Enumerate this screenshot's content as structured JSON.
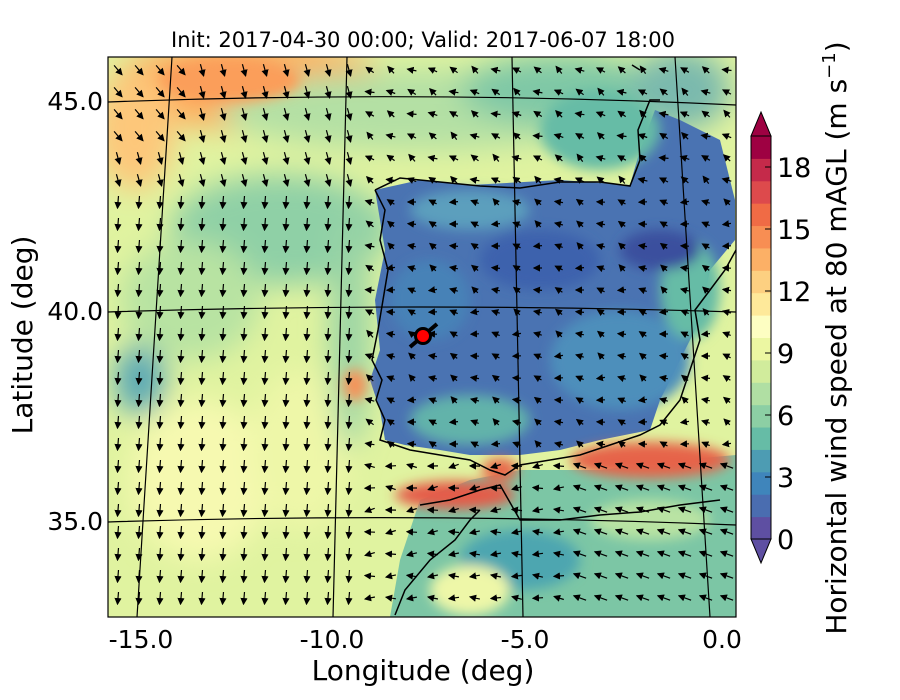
{
  "figure": {
    "title": "Init: 2017-04-30 00:00; Valid: 2017-06-07 18:00",
    "xlabel": "Longitude (deg)",
    "ylabel": "Latitude (deg)",
    "x_ticks": [
      "-15.0",
      "-10.0",
      "-5.0",
      "0.0"
    ],
    "y_ticks": [
      "45.0",
      "40.0",
      "35.0"
    ],
    "colorbar": {
      "label_main": "Horizontal wind speed at 80 mAGL (m s",
      "label_exp": "−1",
      "label_close": ")",
      "ticks": [
        "0",
        "3",
        "6",
        "9",
        "12",
        "15",
        "18"
      ],
      "colors": [
        "#5e4fa2",
        "#4a6db0",
        "#3f85bb",
        "#4d9cb3",
        "#66bca6",
        "#8ccfa4",
        "#b0dfa3",
        "#d1ec9c",
        "#ecf7a2",
        "#fdfec2",
        "#fee99a",
        "#fdd081",
        "#fcb066",
        "#f88e53",
        "#f06b45",
        "#dd4a4c",
        "#c52a4a",
        "#9e0142"
      ]
    },
    "marker": {
      "lon": -7.6,
      "lat": 39.3,
      "color": "#ff0000"
    }
  },
  "chart_data": {
    "type": "heatmap",
    "title": "Init: 2017-04-30 00:00; Valid: 2017-06-07 18:00",
    "xlabel": "Longitude (deg)",
    "ylabel": "Latitude (deg)",
    "xlim": [
      -15.8,
      0.2
    ],
    "ylim": [
      32.7,
      46.2
    ],
    "colorbar_range": [
      0,
      19.5
    ],
    "x_ticks": [
      -15.0,
      -10.0,
      -5.0,
      0.0
    ],
    "y_ticks": [
      45.0,
      40.0,
      35.0
    ]
  }
}
